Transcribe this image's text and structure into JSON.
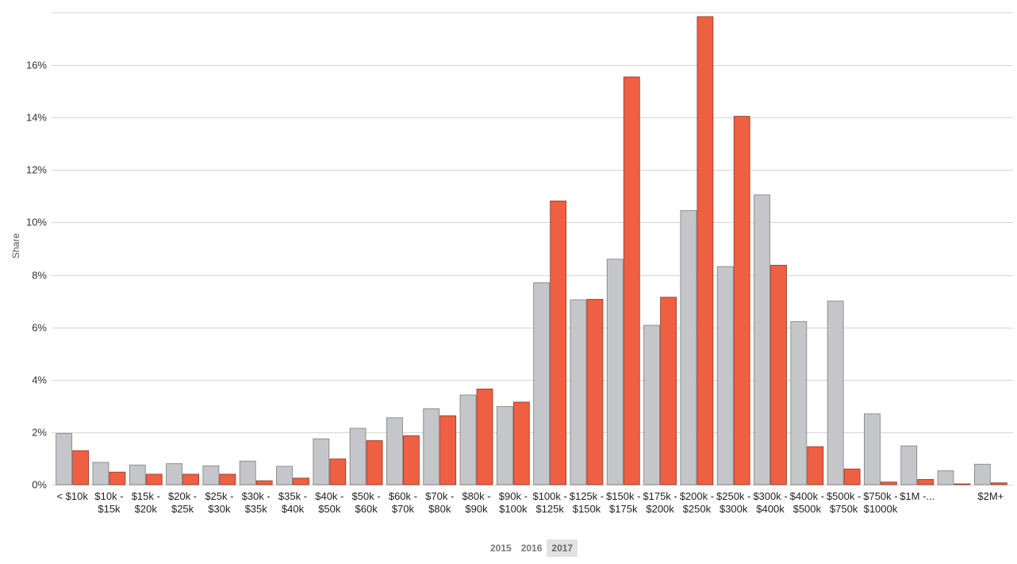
{
  "chart_data": {
    "type": "bar",
    "ylabel": "Share",
    "xlabel": "",
    "ylim": [
      0,
      18
    ],
    "y_ticks": [
      "0%",
      "2%",
      "4%",
      "6%",
      "8%",
      "10%",
      "12%",
      "14%",
      "16%"
    ],
    "y_tick_values": [
      0,
      2,
      4,
      6,
      8,
      10,
      12,
      14,
      16
    ],
    "grid": true,
    "categories": [
      [
        "< $10k"
      ],
      [
        "$10k -",
        "$15k"
      ],
      [
        "$15k -",
        "$20k"
      ],
      [
        "$20k -",
        "$25k"
      ],
      [
        "$25k -",
        "$30k"
      ],
      [
        "$30k -",
        "$35k"
      ],
      [
        "$35k -",
        "$40k"
      ],
      [
        "$40k -",
        "$50k"
      ],
      [
        "$50k -",
        "$60k"
      ],
      [
        "$60k -",
        "$70k"
      ],
      [
        "$70k -",
        "$80k"
      ],
      [
        "$80k -",
        "$90k"
      ],
      [
        "$90k -",
        "$100k"
      ],
      [
        "$100k -",
        "$125k"
      ],
      [
        "$125k -",
        "$150k"
      ],
      [
        "$150k -",
        "$175k"
      ],
      [
        "$175k -",
        "$200k"
      ],
      [
        "$200k -",
        "$250k"
      ],
      [
        "$250k -",
        "$300k"
      ],
      [
        "$300k -",
        "$400k"
      ],
      [
        "$400k -",
        "$500k"
      ],
      [
        "$500k -",
        "$750k"
      ],
      [
        "$750k -",
        "$1000k"
      ],
      [
        "$1M -..."
      ],
      [
        ""
      ],
      [
        "$2M+"
      ]
    ],
    "series": [
      {
        "color": "#c5c6ca",
        "values": [
          1.95,
          0.85,
          0.75,
          0.8,
          0.72,
          0.9,
          0.7,
          1.75,
          2.15,
          2.55,
          2.9,
          3.42,
          2.98,
          7.7,
          7.05,
          8.6,
          6.08,
          10.45,
          8.32,
          11.05,
          6.22,
          7.0,
          2.7,
          1.48,
          0.53,
          0.78
        ]
      },
      {
        "color": "#ef5f42",
        "values": [
          1.3,
          0.48,
          0.4,
          0.4,
          0.4,
          0.15,
          0.25,
          0.98,
          1.68,
          1.87,
          2.63,
          3.65,
          3.15,
          10.82,
          7.07,
          15.55,
          7.15,
          17.85,
          14.05,
          8.37,
          1.45,
          0.6,
          0.1,
          0.2,
          0.03,
          0.07
        ]
      }
    ]
  },
  "year_tabs": {
    "items": [
      "2015",
      "2016",
      "2017"
    ],
    "active": "2017"
  }
}
